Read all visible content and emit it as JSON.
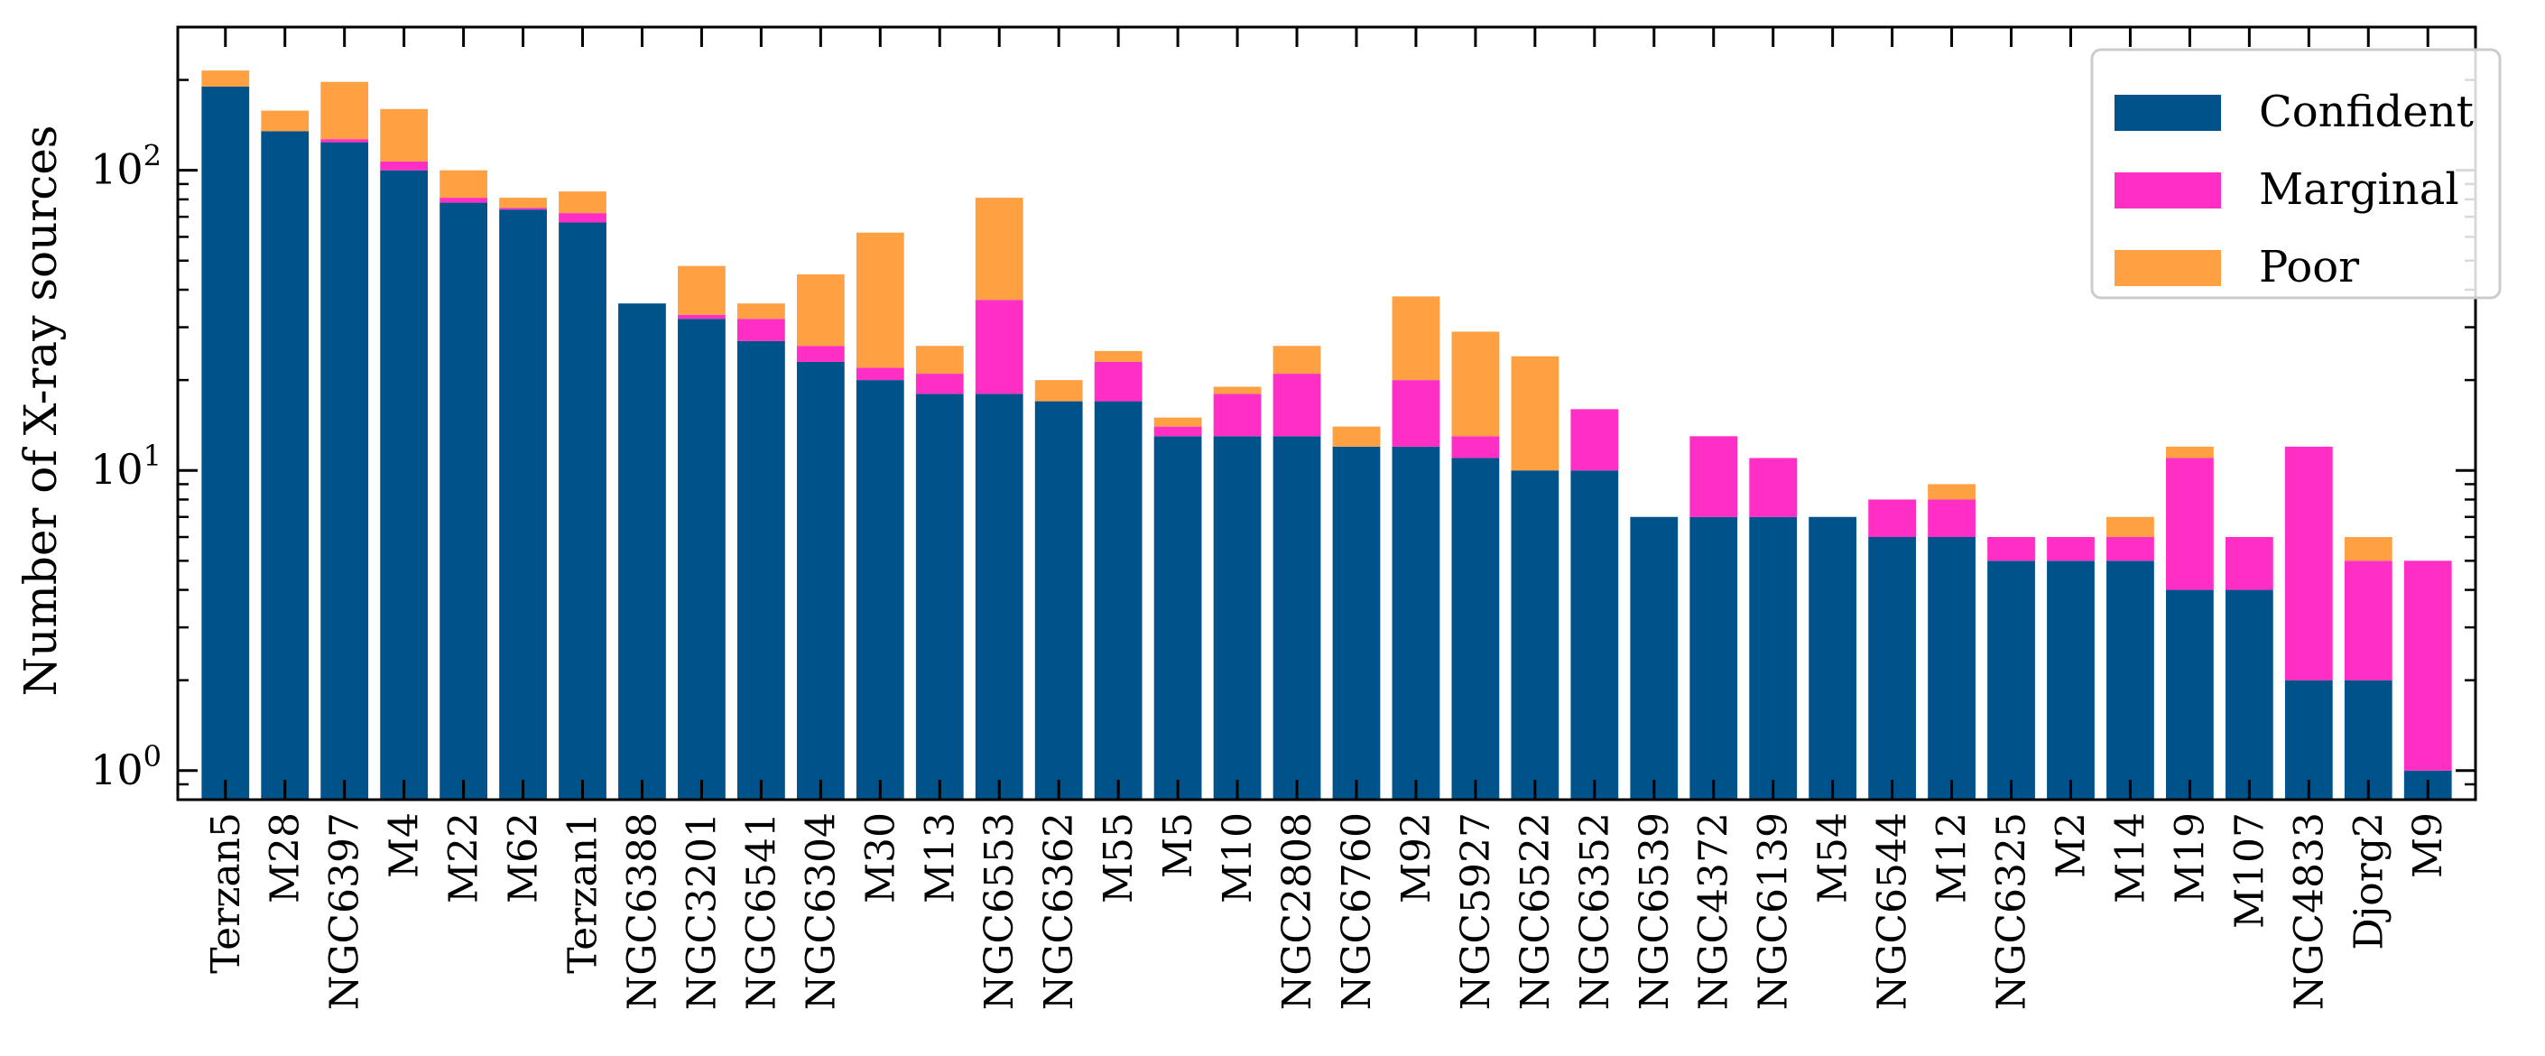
{
  "chart_data": {
    "type": "bar",
    "stacked": true,
    "ylabel": "Number of X-ray sources",
    "yscale": "log",
    "ylim": [
      0.8,
      300
    ],
    "y_ticks": [
      {
        "value": 1,
        "base": "10",
        "exp": "0"
      },
      {
        "value": 10,
        "base": "10",
        "exp": "1"
      },
      {
        "value": 100,
        "base": "10",
        "exp": "2"
      }
    ],
    "legend_position": "top-right",
    "categories": [
      "Terzan5",
      "M28",
      "NGC6397",
      "M4",
      "M22",
      "M62",
      "Terzan1",
      "NGC6388",
      "NGC3201",
      "NGC6541",
      "NGC6304",
      "M30",
      "M13",
      "NGC6553",
      "NGC6362",
      "M55",
      "M5",
      "M10",
      "NGC2808",
      "NGC6760",
      "M92",
      "NGC5927",
      "NGC6522",
      "NGC6352",
      "NGC6539",
      "NGC4372",
      "NGC6139",
      "M54",
      "NGC6544",
      "M12",
      "NGC6325",
      "M2",
      "M14",
      "M19",
      "M107",
      "NGC4833",
      "Djorg2",
      "M9"
    ],
    "series": [
      {
        "name": "Confident",
        "color": "#00528a",
        "values": [
          190,
          135,
          124,
          100,
          78,
          74,
          67,
          36,
          32,
          27,
          23,
          20,
          18,
          18,
          17,
          17,
          13,
          13,
          13,
          12,
          12,
          11,
          10,
          10,
          7,
          7,
          7,
          7,
          6,
          6,
          5,
          5,
          5,
          4,
          4,
          2,
          2,
          1
        ]
      },
      {
        "name": "Marginal",
        "color": "#ff2ec4",
        "values": [
          0,
          0,
          3,
          7,
          3,
          1,
          5,
          0,
          1,
          5,
          3,
          2,
          3,
          19,
          0,
          6,
          1,
          5,
          8,
          0,
          8,
          2,
          0,
          6,
          0,
          6,
          4,
          0,
          2,
          2,
          1,
          1,
          1,
          7,
          2,
          10,
          3,
          4
        ]
      },
      {
        "name": "Poor",
        "color": "#ffa143",
        "values": [
          25,
          23,
          70,
          53,
          19,
          6,
          13,
          0,
          15,
          4,
          19,
          40,
          5,
          44,
          3,
          2,
          1,
          1,
          5,
          2,
          18,
          16,
          14,
          0,
          0,
          0,
          0,
          0,
          0,
          1,
          0,
          0,
          1,
          1,
          0,
          0,
          1,
          0
        ]
      }
    ]
  }
}
